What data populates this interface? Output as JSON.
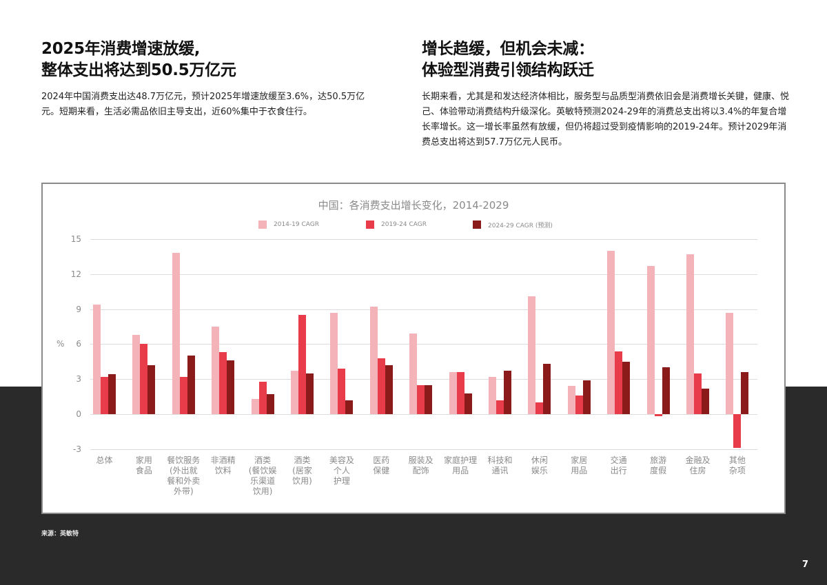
{
  "left_section": {
    "headline_line1": "2025年消费增速放缓,",
    "headline_line2": "整体支出将达到50.5万亿元",
    "body": "2024年中国消费支出达48.7万亿元，预计2025年增速放缓至3.6%，达50.5万亿元。短期来看，生活必需品依旧主导支出，近60%集中于衣食住行。"
  },
  "right_section": {
    "headline_line1": "增长趋缓，但机会未减：",
    "headline_line2": "体验型消费引领结构跃迁",
    "body": "长期来看，尤其是和发达经济体相比，服务型与品质型消费依旧会是消费增长关键，健康、悦己、体验带动消费结构升级深化。英敏特预测2024-29年的消费总支出将以3.4%的年复合增长率增长。这一增长率虽然有放缓，但仍将超过受到疫情影响的2019-24年。预计2029年消费总支出将达到57.7万亿元人民币。"
  },
  "footer": {
    "source": "来源：英敏特",
    "page_number": "7"
  },
  "colors": {
    "series_2014_19": "#f4b3b9",
    "series_2019_24": "#e83c4a",
    "series_2024_29": "#8b1a1a",
    "dark_band": "#2a2a2a",
    "axis_text": "#8a8a8a"
  },
  "chart_data": {
    "type": "bar",
    "title": "中国：各消费支出增长变化，2014-2029",
    "xlabel": "",
    "ylabel": "%",
    "ylim": [
      -3,
      15
    ],
    "yticks": [
      15,
      12,
      9,
      6,
      3,
      0,
      -3
    ],
    "grid": true,
    "legend_position": "top",
    "categories": [
      "总体",
      "家用\n食品",
      "餐饮服务\n(外出就\n餐和外卖\n外带)",
      "非酒精\n饮料",
      "酒类\n(餐饮娱\n乐渠道\n饮用)",
      "酒类\n(居家\n饮用)",
      "美容及\n个人\n护理",
      "医药\n保健",
      "服装及\n配饰",
      "家庭护理\n用品",
      "科技和\n通讯",
      "休闲\n娱乐",
      "家居\n用品",
      "交通\n出行",
      "旅游\n度假",
      "金融及\n住房",
      "其他\n杂项"
    ],
    "series": [
      {
        "name": "2014-19 CAGR",
        "values": [
          9.4,
          6.8,
          13.8,
          7.5,
          1.3,
          3.7,
          8.7,
          9.2,
          6.9,
          3.6,
          3.2,
          10.1,
          2.4,
          14.0,
          12.7,
          13.7,
          8.7
        ]
      },
      {
        "name": "2019-24 CAGR",
        "values": [
          3.2,
          6.0,
          3.2,
          5.3,
          2.8,
          8.5,
          3.9,
          4.8,
          2.5,
          3.6,
          1.2,
          1.0,
          1.6,
          5.4,
          -0.2,
          3.5,
          -2.9
        ]
      },
      {
        "name": "2024-29 CAGR (预测)",
        "values": [
          3.4,
          4.2,
          5.0,
          4.6,
          1.7,
          3.5,
          1.2,
          4.2,
          2.5,
          1.8,
          3.7,
          4.3,
          2.9,
          4.5,
          4.0,
          2.2,
          3.6
        ]
      }
    ]
  }
}
